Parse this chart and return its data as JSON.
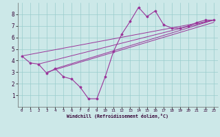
{
  "xlabel": "Windchill (Refroidissement éolien,°C)",
  "bg_color": "#cce8e8",
  "line_color": "#993399",
  "grid_color": "#99cccc",
  "xlim": [
    -0.5,
    23.5
  ],
  "ylim": [
    0,
    9
  ],
  "xticks": [
    0,
    1,
    2,
    3,
    4,
    5,
    6,
    7,
    8,
    9,
    10,
    11,
    12,
    13,
    14,
    15,
    16,
    17,
    18,
    19,
    20,
    21,
    22,
    23
  ],
  "yticks": [
    1,
    2,
    3,
    4,
    5,
    6,
    7,
    8
  ],
  "series": [
    [
      0,
      4.4
    ],
    [
      1,
      3.8
    ],
    [
      2,
      3.7
    ],
    [
      3,
      2.9
    ],
    [
      4,
      3.3
    ],
    [
      5,
      2.6
    ],
    [
      6,
      2.4
    ],
    [
      7,
      1.7
    ],
    [
      8,
      0.7
    ],
    [
      9,
      0.7
    ],
    [
      10,
      2.6
    ],
    [
      11,
      4.8
    ],
    [
      12,
      6.3
    ],
    [
      13,
      7.4
    ],
    [
      14,
      8.6
    ],
    [
      15,
      7.8
    ],
    [
      16,
      8.3
    ],
    [
      17,
      7.1
    ],
    [
      18,
      6.8
    ],
    [
      19,
      6.8
    ],
    [
      20,
      7.0
    ],
    [
      21,
      7.3
    ],
    [
      22,
      7.5
    ],
    [
      23,
      7.5
    ]
  ],
  "line2": [
    [
      0,
      4.4
    ],
    [
      23,
      7.5
    ]
  ],
  "line3": [
    [
      2,
      3.7
    ],
    [
      23,
      7.5
    ]
  ],
  "line4": [
    [
      3,
      3.0
    ],
    [
      23,
      7.3
    ]
  ],
  "line5": [
    [
      4,
      3.3
    ],
    [
      23,
      7.5
    ]
  ]
}
